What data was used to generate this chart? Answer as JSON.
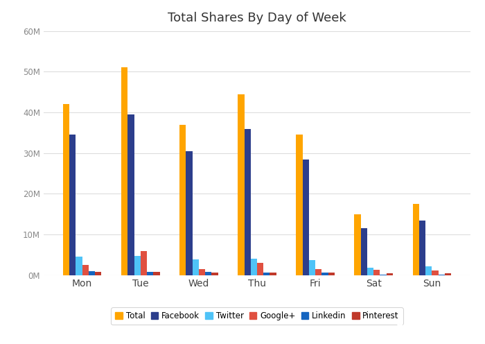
{
  "title": "Total Shares By Day of Week",
  "days": [
    "Mon",
    "Tue",
    "Wed",
    "Thu",
    "Fri",
    "Sat",
    "Sun"
  ],
  "series": {
    "Total": [
      42000000,
      51000000,
      37000000,
      44500000,
      34500000,
      15000000,
      17500000
    ],
    "Facebook": [
      34500000,
      39500000,
      30500000,
      36000000,
      28500000,
      11500000,
      13500000
    ],
    "Twitter": [
      4500000,
      4800000,
      3800000,
      4000000,
      3700000,
      1800000,
      2100000
    ],
    "Google+": [
      2500000,
      6000000,
      1500000,
      3000000,
      1500000,
      1300000,
      1100000
    ],
    "Linkedin": [
      1000000,
      800000,
      800000,
      700000,
      700000,
      200000,
      200000
    ],
    "Pinterest": [
      800000,
      800000,
      600000,
      600000,
      600000,
      400000,
      400000
    ]
  },
  "colors": {
    "Total": "#FFA500",
    "Facebook": "#2C3E8C",
    "Twitter": "#4FC3F7",
    "Google+": "#E05040",
    "Linkedin": "#1565C0",
    "Pinterest": "#C0392B"
  },
  "ylim": [
    0,
    60000000
  ],
  "yticks": [
    0,
    10000000,
    20000000,
    30000000,
    40000000,
    50000000,
    60000000
  ],
  "ytick_labels": [
    "0M",
    "10M",
    "20M",
    "30M",
    "40M",
    "50M",
    "60M"
  ],
  "background_color": "#ffffff",
  "grid_color": "#dddddd",
  "title_fontsize": 13,
  "legend_fontsize": 8.5,
  "tick_fontsize": 8.5,
  "bar_width": 0.11,
  "okdork_bg": "#4CAF50",
  "buzzsumo_bg": "#3399DD"
}
